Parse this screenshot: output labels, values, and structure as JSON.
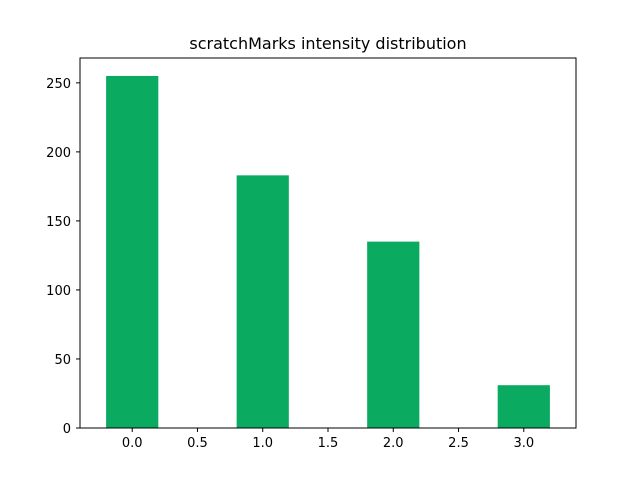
{
  "chart_data": {
    "type": "bar",
    "title": "scratchMarks intensity distribution",
    "xlabel": "",
    "ylabel": "",
    "x": [
      0,
      1,
      2,
      3
    ],
    "values": [
      255,
      183,
      135,
      31
    ],
    "bar_width": 0.4,
    "xlim": [
      -0.4,
      3.4
    ],
    "ylim": [
      0,
      268
    ],
    "x_ticks": [
      0.0,
      0.5,
      1.0,
      1.5,
      2.0,
      2.5,
      3.0
    ],
    "x_tick_labels": [
      "0.0",
      "0.5",
      "1.0",
      "1.5",
      "2.0",
      "2.5",
      "3.0"
    ],
    "y_ticks": [
      0,
      50,
      100,
      150,
      200,
      250
    ],
    "y_tick_labels": [
      "0",
      "50",
      "100",
      "150",
      "200",
      "250"
    ],
    "grid": false,
    "bar_color": "#0aaa60"
  }
}
